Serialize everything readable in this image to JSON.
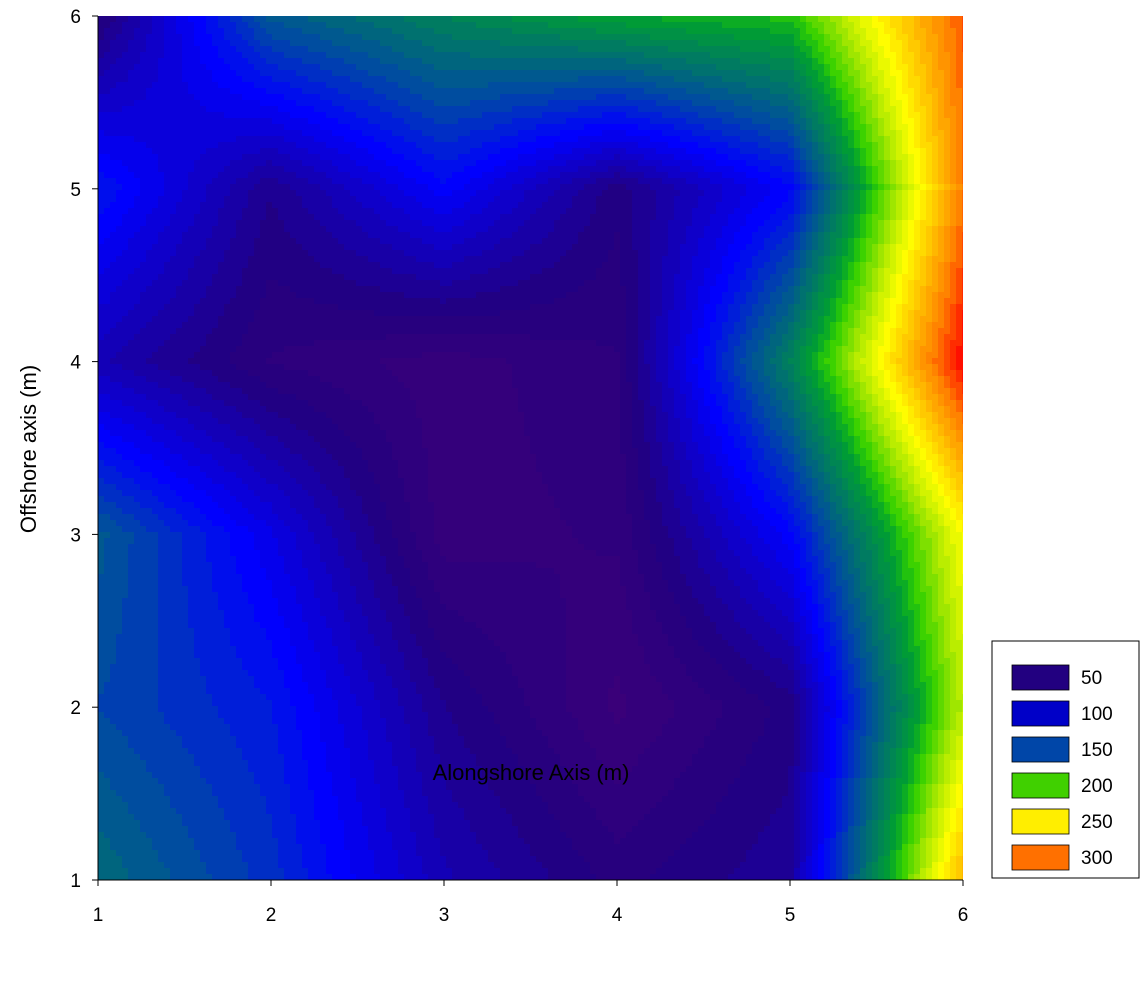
{
  "chart_data": {
    "type": "heatmap",
    "subtype": "filled-contour",
    "title": "",
    "xlabel": "Alongshore Axis (m)",
    "ylabel": "Offshore axis (m)",
    "xlim": [
      1,
      6
    ],
    "ylim": [
      1,
      6
    ],
    "x_ticks": [
      "1",
      "2",
      "3",
      "4",
      "5",
      "6"
    ],
    "y_ticks": [
      "1",
      "2",
      "3",
      "4",
      "5",
      "6"
    ],
    "grid": false,
    "legend_position": "right",
    "x": [
      1,
      2,
      3,
      4,
      5,
      6
    ],
    "y": [
      1,
      2,
      3,
      4,
      5,
      6
    ],
    "z": [
      [
        150,
        120,
        70,
        45,
        60,
        280
      ],
      [
        130,
        110,
        55,
        25,
        50,
        230
      ],
      [
        140,
        90,
        30,
        35,
        100,
        250
      ],
      [
        70,
        40,
        30,
        40,
        165,
        330
      ],
      [
        110,
        55,
        100,
        50,
        100,
        300
      ],
      [
        45,
        140,
        165,
        185,
        195,
        310
      ]
    ],
    "color_stops": [
      {
        "value": 20,
        "color": "#3d0078"
      },
      {
        "value": 50,
        "color": "#220080"
      },
      {
        "value": 100,
        "color": "#0000ff"
      },
      {
        "value": 130,
        "color": "#0046a8"
      },
      {
        "value": 150,
        "color": "#006a78"
      },
      {
        "value": 185,
        "color": "#00a030"
      },
      {
        "value": 200,
        "color": "#30d000"
      },
      {
        "value": 225,
        "color": "#a8e800"
      },
      {
        "value": 250,
        "color": "#ffff00"
      },
      {
        "value": 300,
        "color": "#ff8000"
      },
      {
        "value": 330,
        "color": "#ff0000"
      }
    ],
    "n_levels": 45,
    "legend": [
      {
        "label": "50",
        "color": "#220080"
      },
      {
        "label": "100",
        "color": "#0000c8"
      },
      {
        "label": "150",
        "color": "#0046a8"
      },
      {
        "label": "200",
        "color": "#40d000"
      },
      {
        "label": "250",
        "color": "#ffee00"
      },
      {
        "label": "300",
        "color": "#ff7000"
      }
    ]
  }
}
